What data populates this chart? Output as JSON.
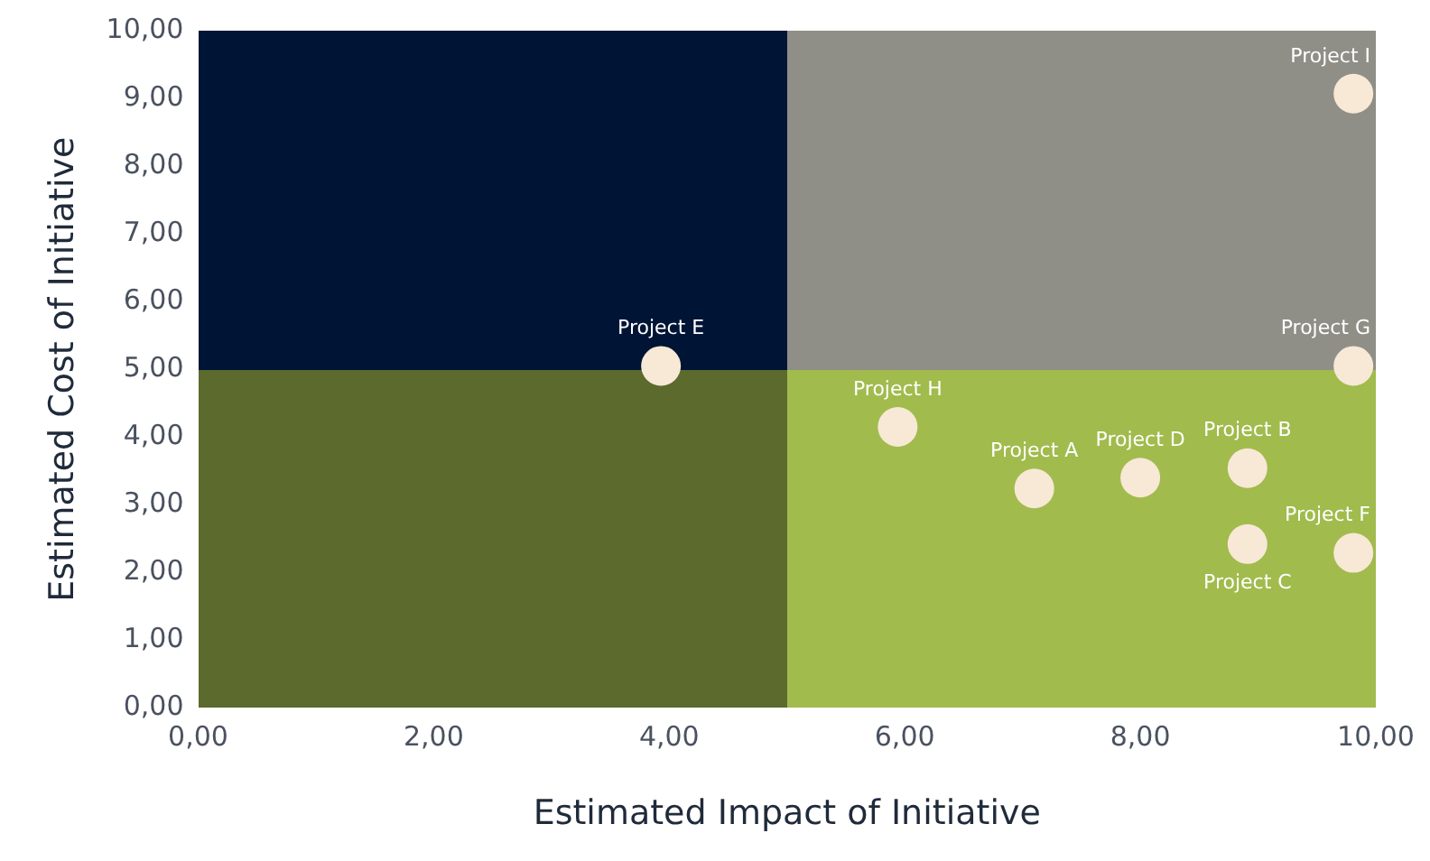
{
  "chart_data": {
    "type": "scatter",
    "xlabel": "Estimated Impact of Initiative",
    "ylabel": "Estimated Cost of Initiative",
    "x": [
      3.93,
      5.94,
      7.1,
      8.0,
      8.91,
      8.91,
      9.81,
      9.81,
      9.81
    ],
    "series": [
      {
        "color": "#f8e8d6",
        "values": [
          5.05,
          4.15,
          3.24,
          3.4,
          3.54,
          2.42,
          2.29,
          5.05,
          9.07
        ]
      }
    ],
    "annotations": [
      {
        "text": "Project E",
        "x": 3.93,
        "y": 5.05
      },
      {
        "text": "Project H",
        "x": 5.94,
        "y": 4.15
      },
      {
        "text": "Project A",
        "x": 7.1,
        "y": 3.24
      },
      {
        "text": "Project D",
        "x": 8.0,
        "y": 3.4
      },
      {
        "text": "Project B",
        "x": 8.91,
        "y": 3.54
      },
      {
        "text": "Project C",
        "x": 8.91,
        "y": 2.42
      },
      {
        "text": "Project F",
        "x": 9.81,
        "y": 2.29
      },
      {
        "text": "Project G",
        "x": 9.81,
        "y": 5.05
      },
      {
        "text": "Project I",
        "x": 9.81,
        "y": 9.07
      }
    ],
    "xlim": [
      0,
      10
    ],
    "ylim": [
      0,
      10
    ],
    "xticks": [
      {
        "value": 0,
        "label": "0,00"
      },
      {
        "value": 2,
        "label": "2,00"
      },
      {
        "value": 4,
        "label": "4,00"
      },
      {
        "value": 6,
        "label": "6,00"
      },
      {
        "value": 8,
        "label": "8,00"
      },
      {
        "value": 10,
        "label": "10,00"
      }
    ],
    "yticks": [
      {
        "value": 0,
        "label": "0,00"
      },
      {
        "value": 1,
        "label": "1,00"
      },
      {
        "value": 2,
        "label": "2,00"
      },
      {
        "value": 3,
        "label": "3,00"
      },
      {
        "value": 4,
        "label": "4,00"
      },
      {
        "value": 5,
        "label": "5,00"
      },
      {
        "value": 6,
        "label": "6,00"
      },
      {
        "value": 7,
        "label": "7,00"
      },
      {
        "value": 8,
        "label": "8,00"
      },
      {
        "value": 9,
        "label": "9,00"
      },
      {
        "value": 10,
        "label": "10,00"
      }
    ],
    "grid": false,
    "legend": false,
    "marker": "circle"
  }
}
